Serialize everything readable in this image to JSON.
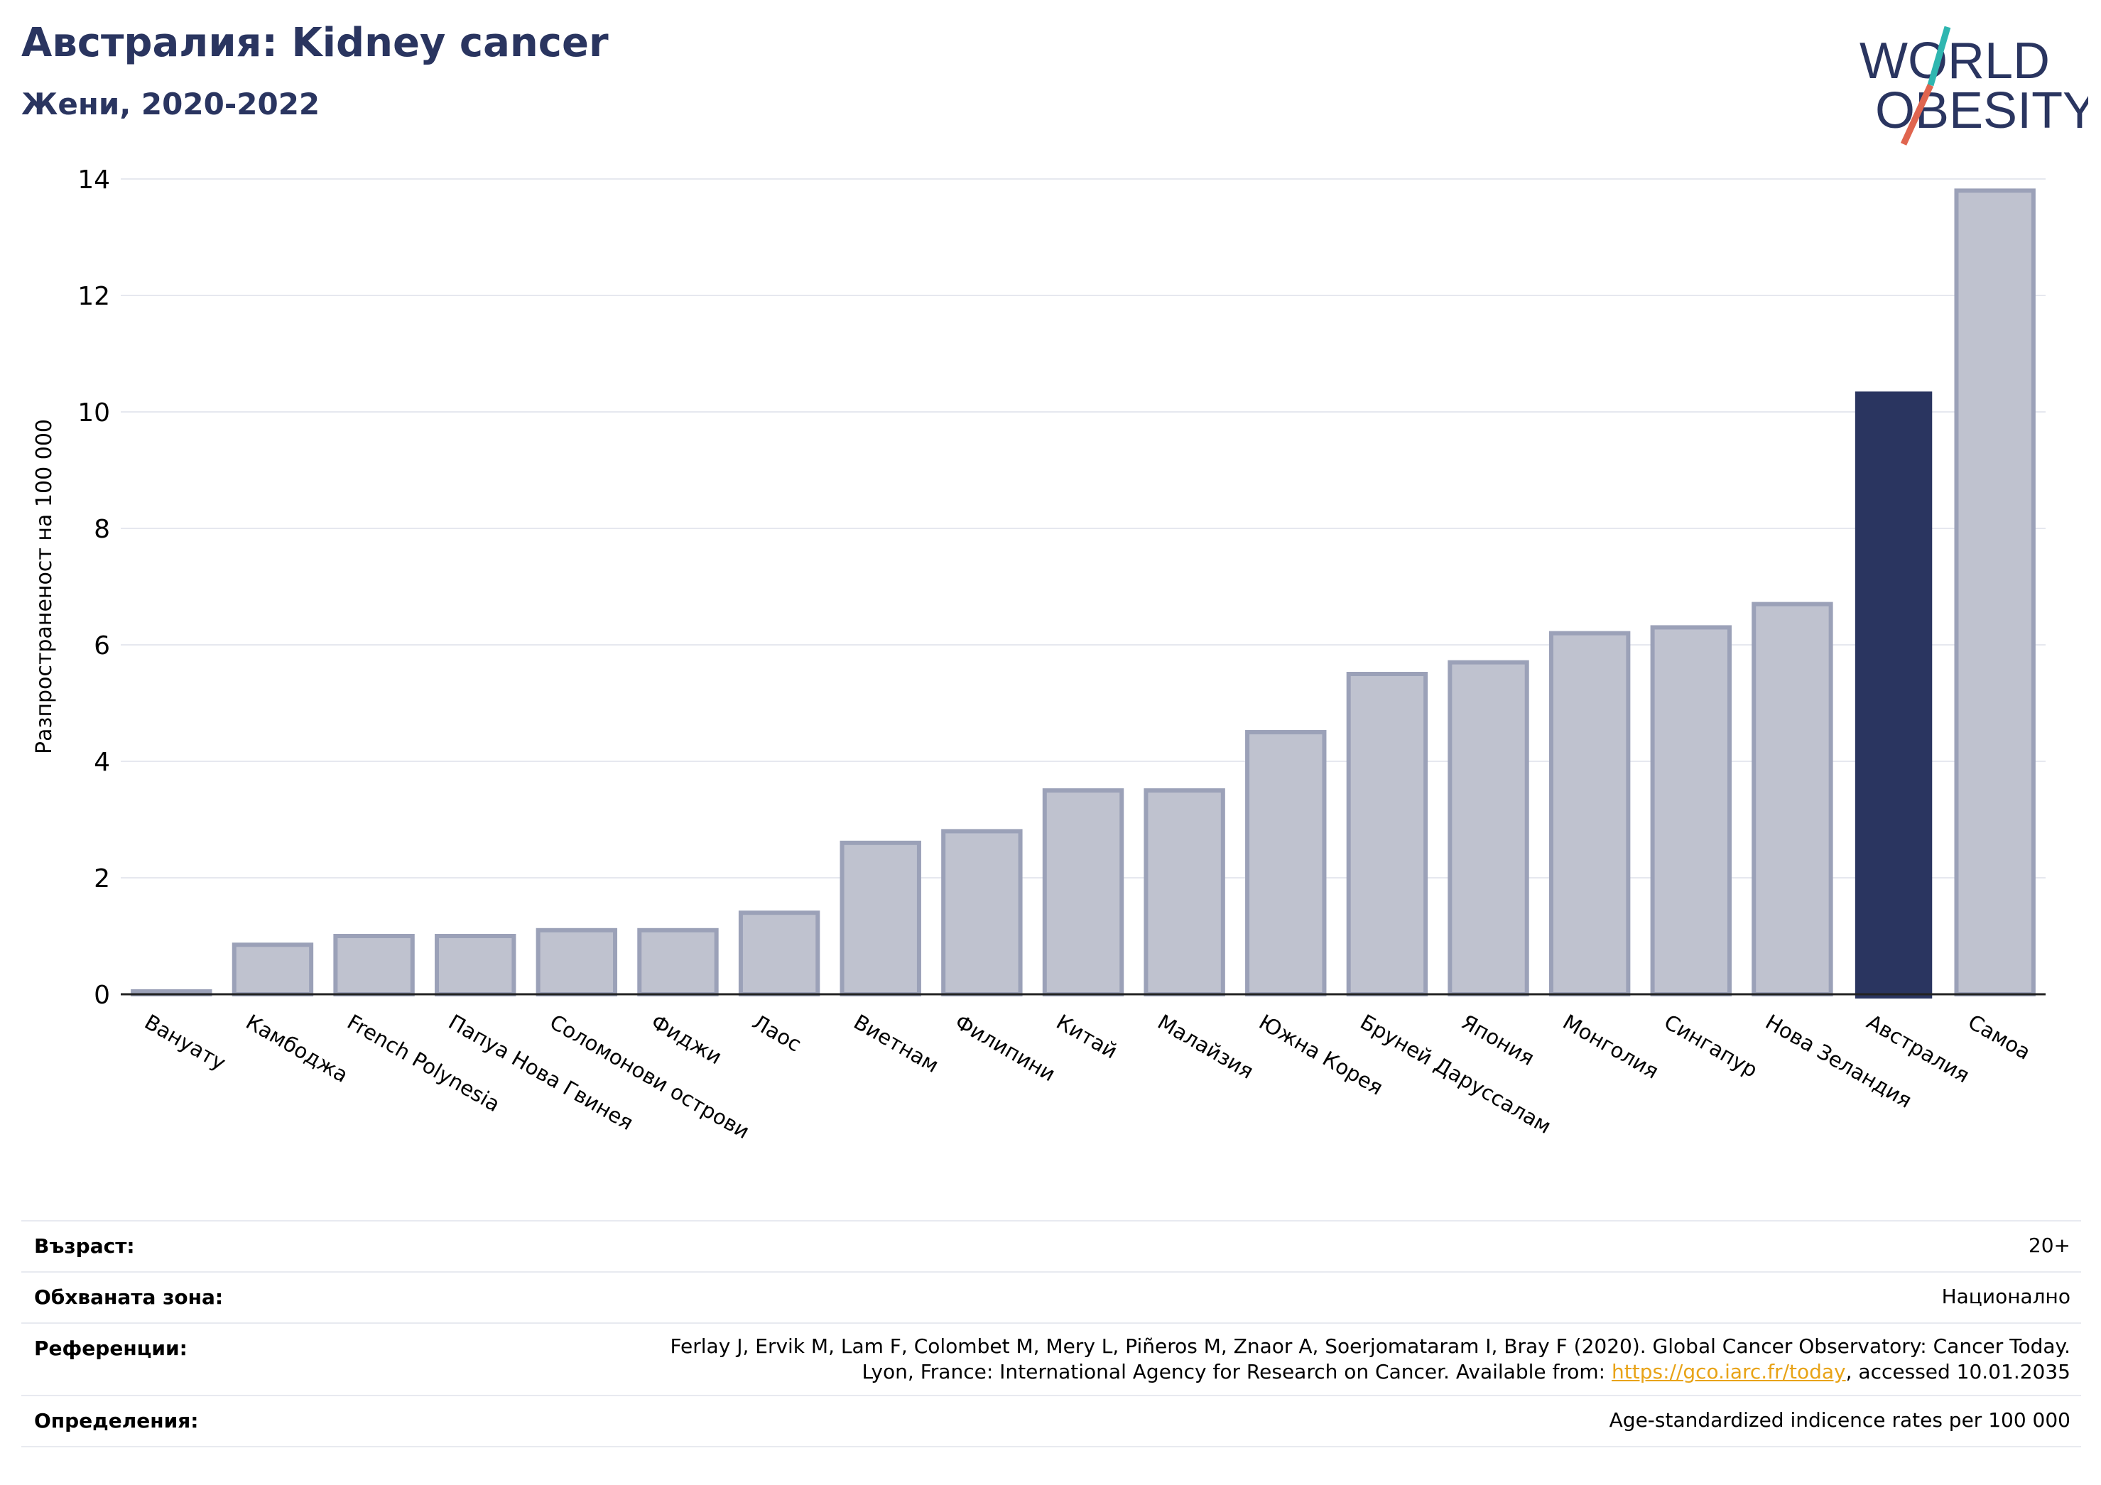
{
  "header": {
    "title": "Австралия: Kidney cancer",
    "subtitle": "Жени, 2020-2022"
  },
  "logo": {
    "line1": "WORLD",
    "line2": "OBESITY"
  },
  "chart_data": {
    "type": "bar",
    "ylabel": "Разпространеност  на 100 000",
    "ylim": [
      0,
      14
    ],
    "yticks": [
      0,
      2,
      4,
      6,
      8,
      10,
      12,
      14
    ],
    "grid": true,
    "categories": [
      "Вануату",
      "Камбоджа",
      "French Polynesia",
      "Папуа Нова Гвинея",
      "Соломонови острови",
      "Фиджи",
      "Лаос",
      "Виетнам",
      "Филипини",
      "Китай",
      "Малайзия",
      "Южна Корея",
      "Бруней Даруссалам",
      "Япония",
      "Монголия",
      "Сингапур",
      "Нова Зеландия",
      "Австралия",
      "Самоа"
    ],
    "values": [
      0.05,
      0.85,
      1.0,
      1.0,
      1.1,
      1.1,
      1.4,
      2.6,
      2.8,
      3.5,
      3.5,
      4.5,
      5.5,
      5.7,
      6.2,
      6.3,
      6.7,
      10.35,
      13.8
    ],
    "highlight": "Австралия",
    "colors": {
      "bar": "#bfc2cf",
      "bar_edge": "#9ba1b8",
      "highlight": "#2a3560",
      "grid": "#e6e8ef",
      "axis": "#222222"
    }
  },
  "info": {
    "age_label": "Възраст:",
    "age_value": "20+",
    "coverage_label": "Обхваната зона:",
    "coverage_value": "Национално",
    "references_label": "Референции:",
    "references_line1": "Ferlay J, Ervik M, Lam F, Colombet M, Mery L, Piñeros M, Znaor A, Soerjomataram I, Bray F (2020). Global Cancer Observatory: Cancer Today.",
    "references_line2_pre": "Lyon, France: International Agency for Research on Cancer. Available from: ",
    "references_link": "https://gco.iarc.fr/today",
    "references_line2_post": ", accessed 10.01.2035",
    "definitions_label": "Определения:",
    "definitions_value": "Age-standardized indicence rates per 100 000"
  }
}
